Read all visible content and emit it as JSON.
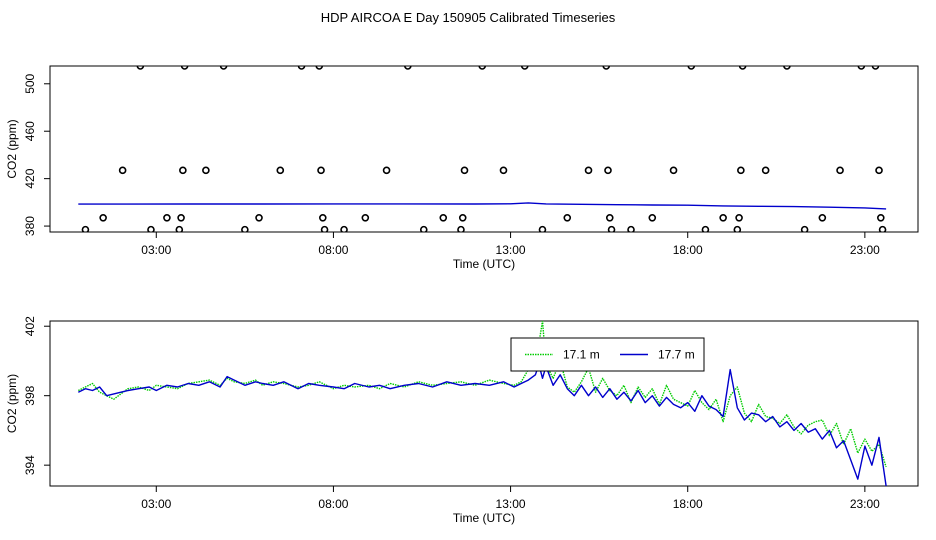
{
  "page": {
    "title": "HDP AIRCOA E  Day 150905  Calibrated Timeseries"
  },
  "colors": {
    "series_green": "#00cc00",
    "series_blue": "#0000cc",
    "axis": "#000000",
    "points": "#000000"
  },
  "chart_data": [
    {
      "type": "scatter",
      "title": "",
      "xlabel": "Time (UTC)",
      "ylabel": "CO2 (ppm)",
      "xlim": [
        0,
        24.5
      ],
      "ylim": [
        375,
        515
      ],
      "x_tick_labels": [
        "03:00",
        "08:00",
        "13:00",
        "18:00",
        "23:00"
      ],
      "x_tick_values": [
        3,
        8,
        13,
        18,
        23
      ],
      "y_tick_labels": [
        "380",
        "420",
        "460",
        "500"
      ],
      "y_tick_values": [
        380,
        420,
        460,
        500
      ],
      "grid": false,
      "series": [
        {
          "style": "points",
          "x": [
            1.0,
            1.5,
            2.05,
            2.55,
            2.85,
            3.3,
            3.65,
            3.7,
            3.75,
            3.8,
            4.4,
            4.9,
            5.5,
            5.9,
            6.5,
            7.1,
            7.6,
            7.65,
            7.7,
            7.75,
            8.3,
            8.9,
            9.5,
            10.1,
            10.55,
            11.1,
            11.6,
            11.65,
            11.7,
            12.2,
            12.8,
            13.4,
            13.9,
            14.6,
            15.2,
            15.7,
            15.75,
            15.8,
            15.85,
            16.4,
            17.0,
            17.6,
            18.1,
            18.5,
            19.0,
            19.4,
            19.45,
            19.5,
            19.55,
            20.2,
            20.8,
            21.3,
            21.8,
            22.3,
            22.9,
            23.3,
            23.4,
            23.45,
            23.5
          ],
          "y": [
            377,
            387,
            427,
            515,
            377,
            387,
            377,
            387,
            427,
            515,
            427,
            515,
            377,
            387,
            427,
            515,
            515,
            427,
            387,
            377,
            377,
            387,
            427,
            515,
            377,
            387,
            377,
            387,
            427,
            515,
            427,
            515,
            377,
            387,
            427,
            515,
            427,
            387,
            377,
            377,
            387,
            427,
            515,
            377,
            387,
            377,
            387,
            427,
            515,
            427,
            515,
            377,
            387,
            427,
            515,
            515,
            427,
            387,
            377
          ]
        },
        {
          "style": "line",
          "x": [
            0.8,
            2,
            4,
            6,
            8,
            10,
            12,
            13,
            13.5,
            14,
            15,
            16,
            17,
            18,
            19,
            20,
            21,
            22,
            23,
            23.6
          ],
          "y": [
            398.5,
            398.5,
            398.6,
            398.6,
            398.7,
            398.7,
            398.6,
            398.8,
            399.5,
            398.7,
            398.4,
            398.0,
            397.8,
            397.6,
            397.0,
            396.7,
            396.4,
            395.9,
            395.3,
            394.5
          ]
        }
      ]
    },
    {
      "type": "line",
      "title": "",
      "xlabel": "Time (UTC)",
      "ylabel": "CO2 (ppm)",
      "xlim": [
        0,
        24.5
      ],
      "ylim": [
        392.8,
        402.3
      ],
      "x_tick_labels": [
        "03:00",
        "08:00",
        "13:00",
        "18:00",
        "23:00"
      ],
      "x_tick_values": [
        3,
        8,
        13,
        18,
        23
      ],
      "y_tick_labels": [
        "394",
        "398",
        "402"
      ],
      "y_tick_values": [
        394,
        398,
        402
      ],
      "grid": false,
      "legend": {
        "placement": "top-center"
      },
      "series": [
        {
          "name": "17.1 m",
          "color": "#00cc00",
          "style": "dotted",
          "x": [
            0.8,
            1.0,
            1.2,
            1.4,
            1.6,
            1.8,
            2.0,
            2.2,
            2.5,
            2.8,
            3.0,
            3.3,
            3.6,
            3.9,
            4.2,
            4.5,
            4.8,
            5.0,
            5.2,
            5.5,
            5.8,
            6.0,
            6.3,
            6.6,
            7.0,
            7.3,
            7.6,
            8.0,
            8.3,
            8.6,
            9.0,
            9.3,
            9.6,
            10.0,
            10.4,
            10.8,
            11.2,
            11.6,
            12.0,
            12.4,
            12.8,
            13.1,
            13.3,
            13.5,
            13.7,
            13.8,
            13.9,
            14.0,
            14.2,
            14.4,
            14.6,
            14.8,
            15.0,
            15.2,
            15.4,
            15.6,
            15.8,
            16.0,
            16.2,
            16.4,
            16.6,
            16.8,
            17.0,
            17.2,
            17.4,
            17.6,
            17.8,
            18.0,
            18.2,
            18.4,
            18.6,
            18.8,
            19.0,
            19.2,
            19.4,
            19.6,
            19.8,
            20.0,
            20.2,
            20.4,
            20.6,
            20.8,
            21.0,
            21.2,
            21.4,
            21.6,
            21.8,
            22.0,
            22.2,
            22.4,
            22.6,
            22.8,
            23.0,
            23.2,
            23.4,
            23.6
          ],
          "y": [
            398.3,
            398.5,
            398.7,
            398.2,
            398.0,
            397.8,
            398.1,
            398.4,
            398.5,
            398.3,
            398.6,
            398.5,
            398.4,
            398.7,
            398.8,
            398.9,
            398.6,
            399.0,
            398.8,
            398.7,
            398.9,
            398.6,
            398.8,
            398.7,
            398.5,
            398.6,
            398.8,
            398.4,
            398.6,
            398.5,
            398.6,
            398.4,
            398.7,
            398.5,
            398.8,
            398.6,
            398.7,
            398.8,
            398.6,
            398.9,
            398.7,
            398.6,
            398.8,
            399.5,
            400.5,
            401.0,
            402.3,
            399.8,
            399.0,
            400.0,
            398.5,
            398.2,
            398.8,
            399.6,
            398.2,
            399.0,
            398.3,
            398.0,
            398.6,
            397.6,
            398.5,
            397.9,
            398.4,
            397.5,
            398.6,
            397.8,
            397.6,
            397.4,
            398.3,
            397.6,
            397.2,
            397.8,
            396.5,
            398.0,
            398.5,
            397.0,
            396.5,
            397.5,
            396.8,
            396.7,
            396.4,
            396.9,
            396.2,
            395.8,
            396.3,
            396.5,
            396.6,
            395.7,
            396.4,
            395.2,
            396.1,
            394.7,
            395.5,
            394.8,
            395.2,
            393.9
          ]
        },
        {
          "name": "17.7 m",
          "color": "#0000cc",
          "style": "solid",
          "x": [
            0.8,
            1.0,
            1.2,
            1.4,
            1.6,
            1.8,
            2.0,
            2.2,
            2.5,
            2.8,
            3.0,
            3.3,
            3.6,
            3.9,
            4.2,
            4.5,
            4.8,
            5.0,
            5.2,
            5.5,
            5.8,
            6.0,
            6.3,
            6.6,
            7.0,
            7.3,
            7.6,
            8.0,
            8.3,
            8.6,
            9.0,
            9.3,
            9.6,
            10.0,
            10.4,
            10.8,
            11.2,
            11.6,
            12.0,
            12.4,
            12.8,
            13.1,
            13.3,
            13.5,
            13.7,
            13.8,
            13.9,
            14.0,
            14.2,
            14.4,
            14.6,
            14.8,
            15.0,
            15.2,
            15.4,
            15.6,
            15.8,
            16.0,
            16.2,
            16.4,
            16.6,
            16.8,
            17.0,
            17.2,
            17.4,
            17.6,
            17.8,
            18.0,
            18.2,
            18.4,
            18.6,
            18.8,
            19.0,
            19.2,
            19.4,
            19.6,
            19.8,
            20.0,
            20.2,
            20.4,
            20.6,
            20.8,
            21.0,
            21.2,
            21.4,
            21.6,
            21.8,
            22.0,
            22.2,
            22.4,
            22.6,
            22.8,
            23.0,
            23.2,
            23.4,
            23.6
          ],
          "y": [
            398.2,
            398.4,
            398.3,
            398.5,
            398.0,
            398.1,
            398.2,
            398.3,
            398.4,
            398.5,
            398.3,
            398.6,
            398.5,
            398.7,
            398.6,
            398.8,
            398.5,
            399.1,
            398.9,
            398.6,
            398.8,
            398.7,
            398.6,
            398.8,
            398.4,
            398.7,
            398.6,
            398.5,
            398.4,
            398.7,
            398.5,
            398.6,
            398.4,
            398.6,
            398.7,
            398.5,
            398.8,
            398.6,
            398.7,
            398.6,
            398.8,
            398.5,
            398.7,
            398.9,
            399.2,
            399.8,
            399.0,
            399.7,
            398.6,
            399.2,
            398.4,
            398.0,
            398.6,
            398.0,
            398.5,
            397.9,
            398.4,
            397.8,
            398.2,
            397.7,
            398.3,
            397.6,
            398.0,
            397.4,
            397.9,
            397.5,
            397.3,
            397.6,
            397.1,
            398.0,
            397.4,
            397.2,
            396.8,
            399.5,
            397.3,
            396.6,
            397.0,
            396.9,
            396.5,
            396.8,
            396.2,
            396.5,
            396.0,
            396.4,
            395.9,
            396.1,
            395.5,
            396.0,
            395.0,
            395.4,
            394.3,
            393.2,
            395.1,
            394.0,
            395.6,
            392.8
          ]
        }
      ]
    }
  ]
}
